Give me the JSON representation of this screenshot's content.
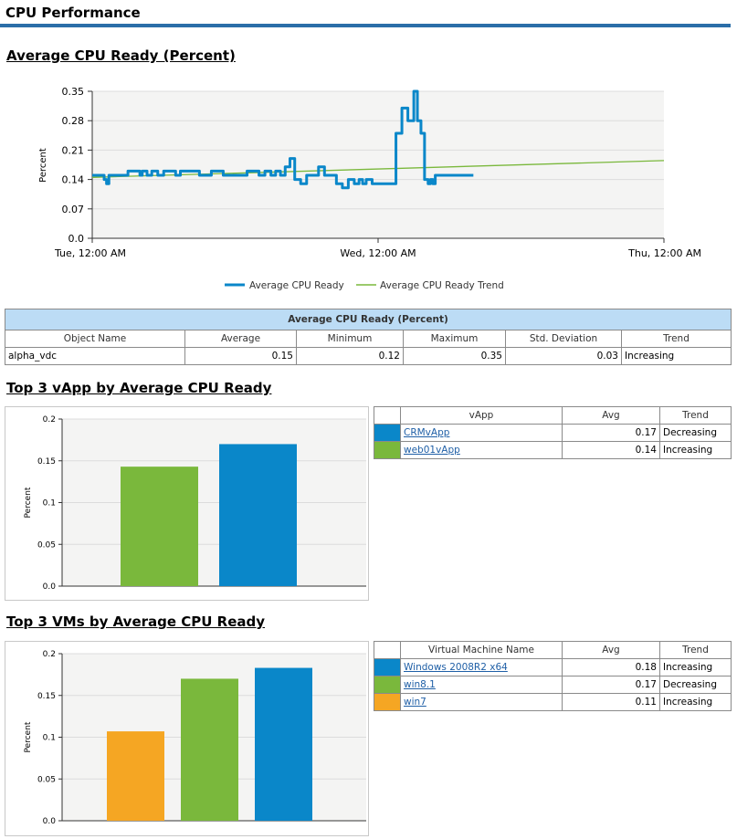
{
  "page": {
    "title": "CPU Performance"
  },
  "colors": {
    "blue": "#0a87c9",
    "green": "#7ab83c",
    "orange": "#f5a623",
    "header_bg": "#bcdcf5",
    "rule": "#2b6ea8"
  },
  "section1": {
    "title": "Average CPU Ready (Percent)",
    "chart": {
      "ylabel": "Percent",
      "yticks": [
        "0.35",
        "0.28",
        "0.21",
        "0.14",
        "0.07",
        "0.0"
      ],
      "xticks": [
        "Tue, 12:00 AM",
        "Wed, 12:00 AM",
        "Thu, 12:00 AM"
      ],
      "legend": [
        "Average CPU Ready",
        "Average CPU Ready Trend"
      ]
    },
    "table": {
      "caption": "Average CPU Ready (Percent)",
      "headers": [
        "Object Name",
        "Average",
        "Minimum",
        "Maximum",
        "Std. Deviation",
        "Trend"
      ],
      "row": [
        "alpha_vdc",
        "0.15",
        "0.12",
        "0.35",
        "0.03",
        "Increasing"
      ]
    }
  },
  "section2": {
    "title": "Top 3 vApp by Average CPU Ready",
    "chart_ylabel": "Percent",
    "yticks": [
      "0.2",
      "0.15",
      "0.1",
      "0.05",
      "0.0"
    ],
    "table": {
      "headers": [
        "vApp",
        "Avg",
        "Trend"
      ],
      "rows": [
        {
          "name": "CRMvApp",
          "avg": "0.17",
          "trend": "Decreasing",
          "color": "#0a87c9"
        },
        {
          "name": "web01vApp",
          "avg": "0.14",
          "trend": "Increasing",
          "color": "#7ab83c"
        }
      ]
    }
  },
  "section3": {
    "title": "Top 3 VMs by Average CPU Ready",
    "chart_ylabel": "Percent",
    "yticks": [
      "0.2",
      "0.15",
      "0.1",
      "0.05",
      "0.0"
    ],
    "table": {
      "headers": [
        "Virtual Machine Name",
        "Avg",
        "Trend"
      ],
      "rows": [
        {
          "name": "Windows 2008R2 x64",
          "avg": "0.18",
          "trend": "Increasing",
          "color": "#0a87c9"
        },
        {
          "name": "win8.1",
          "avg": "0.17",
          "trend": "Decreasing",
          "color": "#7ab83c"
        },
        {
          "name": "win7",
          "avg": "0.11",
          "trend": "Increasing",
          "color": "#f5a623"
        }
      ]
    }
  },
  "chart_data": [
    {
      "type": "line",
      "title": "Average CPU Ready (Percent)",
      "ylabel": "Percent",
      "ylim": [
        0,
        0.35
      ],
      "xlim_hours": [
        0,
        48
      ],
      "x_tick_labels": [
        "Tue, 12:00 AM",
        "Wed, 12:00 AM",
        "Thu, 12:00 AM"
      ],
      "series": [
        {
          "name": "Average CPU Ready",
          "color": "#0a87c9",
          "x_hours": [
            0,
            0.5,
            1,
            1.2,
            1.4,
            2,
            3,
            4,
            4.2,
            4.6,
            5,
            5.5,
            6,
            7,
            7.4,
            8,
            9,
            10,
            11,
            12,
            13,
            14,
            14.5,
            15,
            15.4,
            15.8,
            16.2,
            16.6,
            17,
            17.5,
            18,
            18.5,
            19,
            19.5,
            20,
            20.5,
            21,
            21.5,
            22,
            22.4,
            22.7,
            23,
            23.5,
            24,
            24.5,
            25,
            25.5,
            26,
            26.5,
            27,
            27.3,
            27.6,
            27.9,
            28.2,
            28.4,
            28.6,
            28.8,
            29,
            29.5,
            30,
            31,
            32
          ],
          "values": [
            0.15,
            0.15,
            0.14,
            0.13,
            0.15,
            0.15,
            0.16,
            0.15,
            0.16,
            0.15,
            0.16,
            0.15,
            0.16,
            0.15,
            0.16,
            0.16,
            0.15,
            0.16,
            0.15,
            0.15,
            0.16,
            0.15,
            0.16,
            0.15,
            0.16,
            0.15,
            0.17,
            0.19,
            0.14,
            0.13,
            0.15,
            0.15,
            0.17,
            0.15,
            0.15,
            0.13,
            0.12,
            0.14,
            0.13,
            0.14,
            0.13,
            0.14,
            0.13,
            0.13,
            0.13,
            0.13,
            0.25,
            0.31,
            0.28,
            0.35,
            0.28,
            0.25,
            0.14,
            0.13,
            0.14,
            0.13,
            0.15,
            0.15,
            0.15,
            0.15,
            0.15,
            0.15
          ]
        },
        {
          "name": "Average CPU Ready Trend",
          "color": "#7ab83c",
          "x_hours": [
            0,
            48
          ],
          "values": [
            0.145,
            0.185
          ]
        }
      ]
    },
    {
      "type": "bar",
      "title": "Top 3 vApp by Average CPU Ready",
      "ylabel": "Percent",
      "ylim": [
        0,
        0.2
      ],
      "categories": [
        "web01vApp",
        "CRMvApp"
      ],
      "values": [
        0.143,
        0.17
      ],
      "colors": [
        "#7ab83c",
        "#0a87c9"
      ]
    },
    {
      "type": "bar",
      "title": "Top 3 VMs by Average CPU Ready",
      "ylabel": "Percent",
      "ylim": [
        0,
        0.2
      ],
      "categories": [
        "win7",
        "win8.1",
        "Windows 2008R2 x64"
      ],
      "values": [
        0.107,
        0.17,
        0.183
      ],
      "colors": [
        "#f5a623",
        "#7ab83c",
        "#0a87c9"
      ]
    }
  ]
}
